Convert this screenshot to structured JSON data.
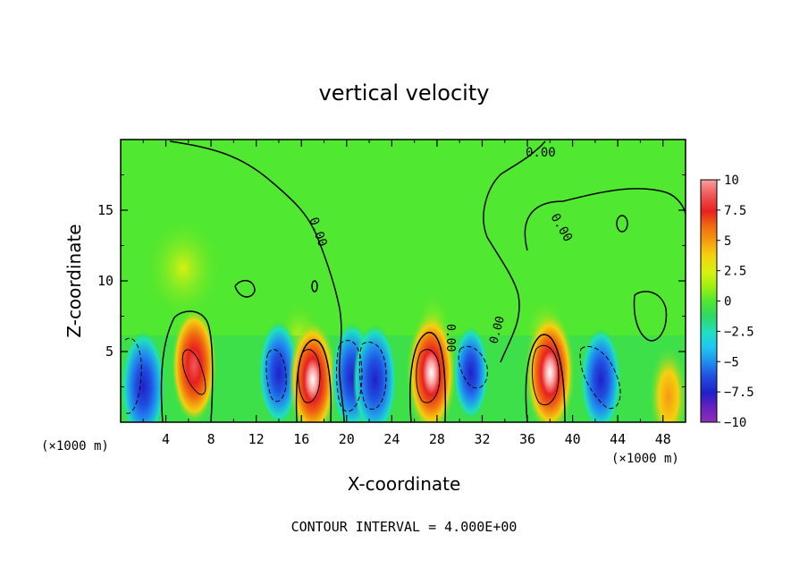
{
  "chart_data": {
    "type": "heatmap",
    "title": "vertical velocity",
    "xlabel": "X-coordinate",
    "ylabel": "Z-coordinate",
    "x_unit_left": "(×1000 m)",
    "x_unit_right": "(×1000 m)",
    "xlim": [
      0,
      50
    ],
    "ylim": [
      0,
      20
    ],
    "x_ticks": [
      "4",
      "8",
      "12",
      "16",
      "20",
      "24",
      "28",
      "32",
      "36",
      "40",
      "44",
      "48"
    ],
    "y_ticks": [
      "5",
      "10",
      "15"
    ],
    "footer": "CONTOUR INTERVAL = 4.000E+00",
    "contour_labels": [
      "0.00",
      "0.00",
      "0.00",
      "0.00",
      "0.00"
    ],
    "colorbar": {
      "range": [
        -10,
        10
      ],
      "tick_labels": [
        "10",
        "7.5",
        "5",
        "2.5",
        "0",
        "−2.5",
        "−5",
        "−7.5",
        "−10"
      ],
      "colors": [
        "#f7a0a0",
        "#f05a5a",
        "#e82020",
        "#f06a10",
        "#f59a10",
        "#f5d010",
        "#d8f010",
        "#a0f010",
        "#50e830",
        "#30d860",
        "#20e0c0",
        "#20c8f0",
        "#2090f0",
        "#2050e0",
        "#2020c8",
        "#6a20c0",
        "#8a30b8"
      ]
    },
    "cells": [
      {
        "x": 2,
        "z": 2.5,
        "w": -7.5
      },
      {
        "x": 6.5,
        "z": 4.0,
        "w": 8.0
      },
      {
        "x": 14,
        "z": 3.5,
        "w": -6.0
      },
      {
        "x": 17,
        "z": 3.0,
        "w": 9.5
      },
      {
        "x": 20.5,
        "z": 3.2,
        "w": -7.0
      },
      {
        "x": 22.5,
        "z": 3.0,
        "w": -7.5
      },
      {
        "x": 27.5,
        "z": 3.5,
        "w": 10.0
      },
      {
        "x": 31,
        "z": 3.5,
        "w": -4.0
      },
      {
        "x": 38,
        "z": 3.5,
        "w": 10.0
      },
      {
        "x": 42.5,
        "z": 3.0,
        "w": -6.0
      },
      {
        "x": 48.5,
        "z": 1.8,
        "w": 5.5
      }
    ]
  }
}
